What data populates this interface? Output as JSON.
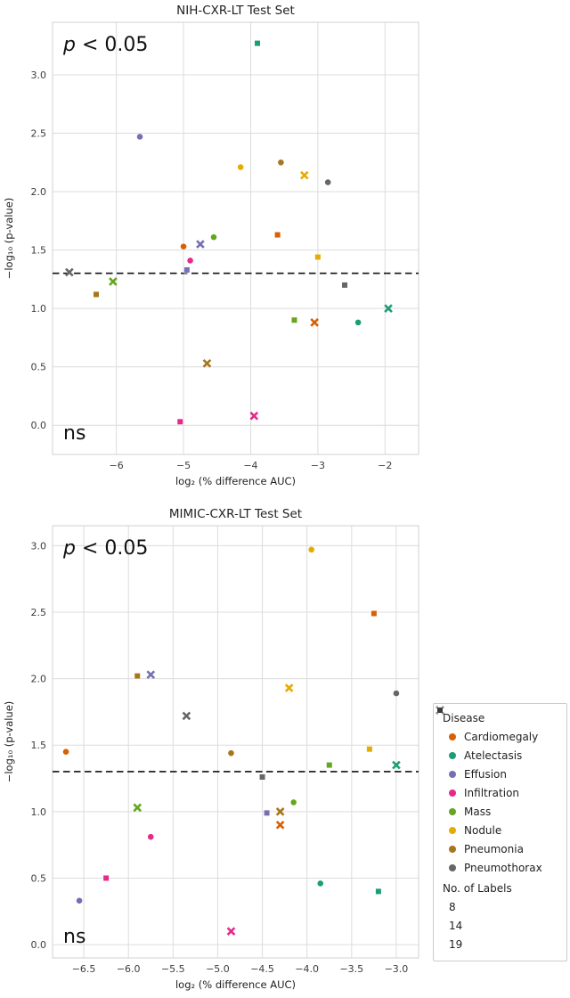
{
  "figure": {
    "background": "#ffffff",
    "grid_color": "#dcdcdc",
    "border_color": "#d9d9d9",
    "tick_color": "#3d3d3d",
    "text_color": "#1f1f1f",
    "threshold_color": "#111111"
  },
  "legend": {
    "disease_title": "Disease",
    "diseases": [
      {
        "name": "Cardiomegaly",
        "color": "#d95f02"
      },
      {
        "name": "Atelectasis",
        "color": "#1b9e77"
      },
      {
        "name": "Effusion",
        "color": "#7570b3"
      },
      {
        "name": "Infiltration",
        "color": "#e7298a"
      },
      {
        "name": "Mass",
        "color": "#66a61e"
      },
      {
        "name": "Nodule",
        "color": "#e6ab02"
      },
      {
        "name": "Pneumonia",
        "color": "#a6761d"
      },
      {
        "name": "Pneumothorax",
        "color": "#666666"
      }
    ],
    "labels_title": "No. of Labels",
    "label_markers": [
      {
        "label": "8",
        "marker": "circle"
      },
      {
        "label": "14",
        "marker": "x"
      },
      {
        "label": "19",
        "marker": "square"
      }
    ],
    "marker_color": "#3b3b3b"
  },
  "chart_data": [
    {
      "id": "nih",
      "type": "scatter",
      "title": "NIH-CXR-LT Test Set",
      "xlabel": "log₂ (% difference AUC)",
      "ylabel": "−log₁₀ (p-value)",
      "xlim": [
        -6.95,
        -1.5
      ],
      "ylim": [
        -0.25,
        3.45
      ],
      "xticks": [
        {
          "v": -6,
          "label": "−6"
        },
        {
          "v": -5,
          "label": "−5"
        },
        {
          "v": -4,
          "label": "−4"
        },
        {
          "v": -3,
          "label": "−3"
        },
        {
          "v": -2,
          "label": "−2"
        }
      ],
      "yticks": [
        {
          "v": 0.0,
          "label": "0.0"
        },
        {
          "v": 0.5,
          "label": "0.5"
        },
        {
          "v": 1.0,
          "label": "1.0"
        },
        {
          "v": 1.5,
          "label": "1.5"
        },
        {
          "v": 2.0,
          "label": "2.0"
        },
        {
          "v": 2.5,
          "label": "2.5"
        },
        {
          "v": 3.0,
          "label": "3.0"
        }
      ],
      "significance_line_y": 1.301,
      "annotations": [
        {
          "text": "p < 0.05",
          "style": "math",
          "pos": "top-left"
        },
        {
          "text": "ns",
          "style": "plain",
          "pos": "bottom-left"
        }
      ],
      "points": [
        {
          "disease": "Atelectasis",
          "labels": 19,
          "x": -3.9,
          "y": 3.27
        },
        {
          "disease": "Effusion",
          "labels": 8,
          "x": -5.65,
          "y": 2.47
        },
        {
          "disease": "Pneumonia",
          "labels": 8,
          "x": -3.55,
          "y": 2.25
        },
        {
          "disease": "Nodule",
          "labels": 8,
          "x": -4.15,
          "y": 2.21
        },
        {
          "disease": "Nodule",
          "labels": 14,
          "x": -3.2,
          "y": 2.14
        },
        {
          "disease": "Pneumothorax",
          "labels": 8,
          "x": -2.85,
          "y": 2.08
        },
        {
          "disease": "Cardiomegaly",
          "labels": 19,
          "x": -3.6,
          "y": 1.63
        },
        {
          "disease": "Mass",
          "labels": 8,
          "x": -4.55,
          "y": 1.61
        },
        {
          "disease": "Effusion",
          "labels": 14,
          "x": -4.75,
          "y": 1.55
        },
        {
          "disease": "Cardiomegaly",
          "labels": 8,
          "x": -5.0,
          "y": 1.53
        },
        {
          "disease": "Nodule",
          "labels": 19,
          "x": -3.0,
          "y": 1.44
        },
        {
          "disease": "Infiltration",
          "labels": 8,
          "x": -4.9,
          "y": 1.41
        },
        {
          "disease": "Effusion",
          "labels": 19,
          "x": -4.95,
          "y": 1.33
        },
        {
          "disease": "Pneumothorax",
          "labels": 14,
          "x": -6.7,
          "y": 1.31
        },
        {
          "disease": "Mass",
          "labels": 14,
          "x": -6.05,
          "y": 1.23
        },
        {
          "disease": "Pneumothorax",
          "labels": 19,
          "x": -2.6,
          "y": 1.2
        },
        {
          "disease": "Pneumonia",
          "labels": 19,
          "x": -6.3,
          "y": 1.12
        },
        {
          "disease": "Atelectasis",
          "labels": 14,
          "x": -1.95,
          "y": 1.0
        },
        {
          "disease": "Mass",
          "labels": 19,
          "x": -3.35,
          "y": 0.9
        },
        {
          "disease": "Cardiomegaly",
          "labels": 14,
          "x": -3.05,
          "y": 0.88
        },
        {
          "disease": "Atelectasis",
          "labels": 8,
          "x": -2.4,
          "y": 0.88
        },
        {
          "disease": "Pneumonia",
          "labels": 14,
          "x": -4.65,
          "y": 0.53
        },
        {
          "disease": "Infiltration",
          "labels": 14,
          "x": -3.95,
          "y": 0.08
        },
        {
          "disease": "Infiltration",
          "labels": 19,
          "x": -5.05,
          "y": 0.03
        }
      ]
    },
    {
      "id": "mimic",
      "type": "scatter",
      "title": "MIMIC-CXR-LT Test Set",
      "xlabel": "log₂ (% difference AUC)",
      "ylabel": "−log₁₀ (p-value)",
      "xlim": [
        -6.85,
        -2.75
      ],
      "ylim": [
        -0.1,
        3.15
      ],
      "xticks": [
        {
          "v": -6.5,
          "label": "−6.5"
        },
        {
          "v": -6.0,
          "label": "−6.0"
        },
        {
          "v": -5.5,
          "label": "−5.5"
        },
        {
          "v": -5.0,
          "label": "−5.0"
        },
        {
          "v": -4.5,
          "label": "−4.5"
        },
        {
          "v": -4.0,
          "label": "−4.0"
        },
        {
          "v": -3.5,
          "label": "−3.5"
        },
        {
          "v": -3.0,
          "label": "−3.0"
        }
      ],
      "yticks": [
        {
          "v": 0.0,
          "label": "0.0"
        },
        {
          "v": 0.5,
          "label": "0.5"
        },
        {
          "v": 1.0,
          "label": "1.0"
        },
        {
          "v": 1.5,
          "label": "1.5"
        },
        {
          "v": 2.0,
          "label": "2.0"
        },
        {
          "v": 2.5,
          "label": "2.5"
        },
        {
          "v": 3.0,
          "label": "3.0"
        }
      ],
      "significance_line_y": 1.301,
      "annotations": [
        {
          "text": "p < 0.05",
          "style": "math",
          "pos": "top-left"
        },
        {
          "text": "ns",
          "style": "plain",
          "pos": "bottom-left"
        }
      ],
      "points": [
        {
          "disease": "Nodule",
          "labels": 8,
          "x": -3.95,
          "y": 2.97
        },
        {
          "disease": "Cardiomegaly",
          "labels": 19,
          "x": -3.25,
          "y": 2.49
        },
        {
          "disease": "Effusion",
          "labels": 14,
          "x": -5.75,
          "y": 2.03
        },
        {
          "disease": "Pneumonia",
          "labels": 19,
          "x": -5.9,
          "y": 2.02
        },
        {
          "disease": "Nodule",
          "labels": 14,
          "x": -4.2,
          "y": 1.93
        },
        {
          "disease": "Pneumothorax",
          "labels": 8,
          "x": -3.0,
          "y": 1.89
        },
        {
          "disease": "Pneumothorax",
          "labels": 14,
          "x": -5.35,
          "y": 1.72
        },
        {
          "disease": "Nodule",
          "labels": 19,
          "x": -3.3,
          "y": 1.47
        },
        {
          "disease": "Cardiomegaly",
          "labels": 8,
          "x": -6.7,
          "y": 1.45
        },
        {
          "disease": "Pneumonia",
          "labels": 8,
          "x": -4.85,
          "y": 1.44
        },
        {
          "disease": "Mass",
          "labels": 19,
          "x": -3.75,
          "y": 1.35
        },
        {
          "disease": "Atelectasis",
          "labels": 14,
          "x": -3.0,
          "y": 1.35
        },
        {
          "disease": "Pneumothorax",
          "labels": 19,
          "x": -4.5,
          "y": 1.26
        },
        {
          "disease": "Mass",
          "labels": 8,
          "x": -4.15,
          "y": 1.07
        },
        {
          "disease": "Mass",
          "labels": 14,
          "x": -5.9,
          "y": 1.03
        },
        {
          "disease": "Pneumonia",
          "labels": 14,
          "x": -4.3,
          "y": 1.0
        },
        {
          "disease": "Effusion",
          "labels": 19,
          "x": -4.45,
          "y": 0.99
        },
        {
          "disease": "Cardiomegaly",
          "labels": 14,
          "x": -4.3,
          "y": 0.9
        },
        {
          "disease": "Infiltration",
          "labels": 8,
          "x": -5.75,
          "y": 0.81
        },
        {
          "disease": "Infiltration",
          "labels": 19,
          "x": -6.25,
          "y": 0.5
        },
        {
          "disease": "Atelectasis",
          "labels": 8,
          "x": -3.85,
          "y": 0.46
        },
        {
          "disease": "Atelectasis",
          "labels": 19,
          "x": -3.2,
          "y": 0.4
        },
        {
          "disease": "Effusion",
          "labels": 8,
          "x": -6.55,
          "y": 0.33
        },
        {
          "disease": "Infiltration",
          "labels": 14,
          "x": -4.85,
          "y": 0.1
        }
      ]
    }
  ]
}
